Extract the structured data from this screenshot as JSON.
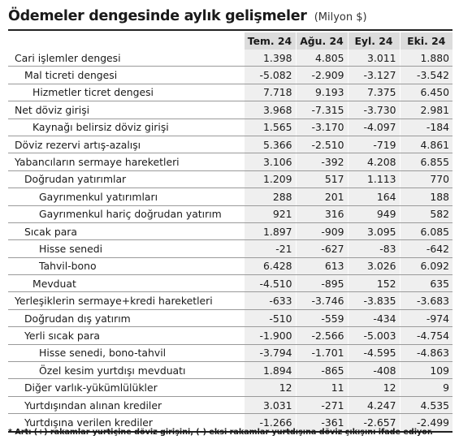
{
  "title": {
    "main": "Ödemeler dengesinde aylık gelişmeler",
    "unit": "(Milyon $)"
  },
  "columns": [
    "Tem. 24",
    "Ağu. 24",
    "Eyl. 24",
    "Eki. 24"
  ],
  "rows": [
    {
      "label": "Cari işlemler dengesi",
      "level": 0,
      "values": [
        "1.398",
        "4.805",
        "3.011",
        "1.880"
      ]
    },
    {
      "label": "Mal ticreti dengesi",
      "level": 1,
      "values": [
        "-5.082",
        "-2.909",
        "-3.127",
        "-3.542"
      ]
    },
    {
      "label": "Hizmetler ticret dengesi",
      "level": 2,
      "values": [
        "7.718",
        "9.193",
        "7.375",
        "6.450"
      ]
    },
    {
      "label": "Net döviz girişi",
      "level": 0,
      "values": [
        "3.968",
        "-7.315",
        "-3.730",
        "2.981"
      ]
    },
    {
      "label": "Kaynağı belirsiz döviz girişi",
      "level": 2,
      "values": [
        "1.565",
        "-3.170",
        "-4.097",
        "-184"
      ]
    },
    {
      "label": "Döviz rezervi artış-azalışı",
      "level": 0,
      "values": [
        "5.366",
        "-2.510",
        "-719",
        "4.861"
      ]
    },
    {
      "label": "Yabancıların sermaye hareketleri",
      "level": 0,
      "values": [
        "3.106",
        "-392",
        "4.208",
        "6.855"
      ]
    },
    {
      "label": "Doğrudan yatırımlar",
      "level": 1,
      "values": [
        "1.209",
        "517",
        "1.113",
        "770"
      ]
    },
    {
      "label": "Gayrımenkul yatırımları",
      "level": 3,
      "values": [
        "288",
        "201",
        "164",
        "188"
      ]
    },
    {
      "label": "Gayrımenkul hariç doğrudan yatırım",
      "level": 3,
      "values": [
        "921",
        "316",
        "949",
        "582"
      ]
    },
    {
      "label": "Sıcak para",
      "level": 1,
      "values": [
        "1.897",
        "-909",
        "3.095",
        "6.085"
      ]
    },
    {
      "label": "Hisse senedi",
      "level": 3,
      "values": [
        "-21",
        "-627",
        "-83",
        "-642"
      ]
    },
    {
      "label": "Tahvil-bono",
      "level": 3,
      "values": [
        "6.428",
        "613",
        "3.026",
        "6.092"
      ]
    },
    {
      "label": "Mevduat",
      "level": 2,
      "values": [
        "-4.510",
        "-895",
        "152",
        "635"
      ]
    },
    {
      "label": "Yerleşiklerin sermaye+kredi hareketleri",
      "level": 0,
      "values": [
        "-633",
        "-3.746",
        "-3.835",
        "-3.683"
      ]
    },
    {
      "label": "Doğrudan dış yatırım",
      "level": 1,
      "values": [
        "-510",
        "-559",
        "-434",
        "-974"
      ]
    },
    {
      "label": "Yerli sıcak para",
      "level": 1,
      "values": [
        "-1.900",
        "-2.566",
        "-5.003",
        "-4.754"
      ]
    },
    {
      "label": "Hisse senedi, bono-tahvil",
      "level": 3,
      "values": [
        "-3.794",
        "-1.701",
        "-4.595",
        "-4.863"
      ]
    },
    {
      "label": "Özel kesim yurtdışı mevduatı",
      "level": 3,
      "values": [
        "1.894",
        "-865",
        "-408",
        "109"
      ]
    },
    {
      "label": "Diğer varlık-yükümlülükler",
      "level": 1,
      "values": [
        "12",
        "11",
        "12",
        "9"
      ]
    },
    {
      "label": "Yurtdışından alınan krediler",
      "level": 1,
      "values": [
        "3.031",
        "-271",
        "4.247",
        "4.535"
      ]
    },
    {
      "label": "Yurtdışına verilen krediler",
      "level": 1,
      "values": [
        "-1.266",
        "-361",
        "-2.657",
        "-2.499"
      ]
    }
  ],
  "footnote": "* Artı (+) rakamlar yurtiçine döviz girişini, (-) eksi rakamlar yurtdışına döviz çıkışını ifade ediyor."
}
